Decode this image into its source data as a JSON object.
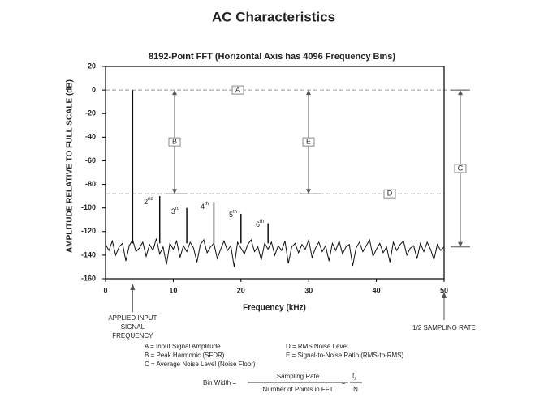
{
  "title": "AC Characteristics",
  "chart_data": {
    "type": "line",
    "title": "8192-Point FFT (Horizontal Axis has 4096 Frequency Bins)",
    "x_label": "Frequency (kHz)",
    "y_label": "AMPLITUDE RELATIVE TO FULL SCALE (dB)",
    "xlim": [
      0,
      50
    ],
    "xticks": [
      0,
      10,
      20,
      30,
      40,
      50
    ],
    "ylim": [
      -160,
      20
    ],
    "yticks": [
      20,
      0,
      -20,
      -40,
      -60,
      -80,
      -100,
      -120,
      -140,
      -160
    ],
    "x": [
      0,
      0.5,
      1,
      1.5,
      2,
      2.5,
      3,
      3.5,
      4,
      4.5,
      5,
      5.5,
      6,
      6.5,
      7,
      7.5,
      8,
      8.5,
      9,
      9.5,
      10,
      10.5,
      11,
      11.5,
      12,
      12.5,
      13,
      13.5,
      14,
      14.5,
      15,
      15.5,
      16,
      16.5,
      17,
      17.5,
      18,
      18.5,
      19,
      19.5,
      20,
      20.5,
      21,
      21.5,
      22,
      22.5,
      23,
      23.5,
      24,
      24.5,
      25,
      25.5,
      26,
      26.5,
      27,
      27.5,
      28,
      28.5,
      29,
      29.5,
      30,
      30.5,
      31,
      31.5,
      32,
      32.5,
      33,
      33.5,
      34,
      34.5,
      35,
      35.5,
      36,
      36.5,
      37,
      37.5,
      38,
      38.5,
      39,
      39.5,
      40,
      40.5,
      41,
      41.5,
      42,
      42.5,
      43,
      43.5,
      44,
      44.5,
      45,
      45.5,
      46,
      46.5,
      47,
      47.5,
      48,
      48.5,
      49,
      49.5,
      50
    ],
    "series": [
      {
        "color": "#111111",
        "values": [
          -131,
          -136,
          -128,
          -140,
          -133,
          -130,
          -145,
          -132,
          -127,
          -137,
          -134,
          -129,
          -141,
          -131,
          -136,
          -126,
          -139,
          -133,
          -148,
          -130,
          -135,
          -128,
          -142,
          -132,
          -137,
          -129,
          -134,
          -146,
          -131,
          -127,
          -138,
          -133,
          -130,
          -143,
          -135,
          -128,
          -136,
          -132,
          -150,
          -129,
          -134,
          -139,
          -131,
          -127,
          -137,
          -133,
          -144,
          -130,
          -135,
          -129,
          -140,
          -132,
          -136,
          -128,
          -147,
          -133,
          -130,
          -138,
          -131,
          -135,
          -127,
          -142,
          -134,
          -129,
          -137,
          -132,
          -145,
          -130,
          -136,
          -128,
          -139,
          -133,
          -131,
          -149,
          -134,
          -129,
          -137,
          -132,
          -127,
          -141,
          -135,
          -130,
          -138,
          -133,
          -146,
          -129,
          -136,
          -131,
          -128,
          -140,
          -134,
          -132,
          -143,
          -130,
          -137,
          -129,
          -135,
          -144,
          -131,
          -136,
          -133
        ]
      }
    ],
    "tones": {
      "color": "#111111",
      "x": [
        4,
        8,
        12,
        16,
        20,
        24
      ],
      "values": [
        0,
        -90,
        -100,
        -95,
        -105,
        -113
      ]
    },
    "harmonic_labels": [
      {
        "number": "2",
        "suffix": "nd"
      },
      {
        "number": "3",
        "suffix": "rd"
      },
      {
        "number": "4",
        "suffix": "th"
      },
      {
        "number": "5",
        "suffix": "th"
      },
      {
        "number": "6",
        "suffix": "th"
      }
    ],
    "reference_lines": [
      {
        "label": "A",
        "value": 0
      },
      {
        "label": "D",
        "value": -88
      }
    ],
    "spans": [
      {
        "label": "B",
        "from": 0,
        "to": -88
      },
      {
        "label": "E",
        "from": 0,
        "to": -88
      },
      {
        "label": "C",
        "from": 0,
        "to": -133
      }
    ],
    "callouts": {
      "input": [
        "APPLIED INPUT",
        "SIGNAL",
        "FREQUENCY"
      ],
      "nyquist": "1/2 SAMPLING RATE"
    }
  },
  "notes": {
    "legend": [
      "A = Input Signal Amplitude",
      "B = Peak Harmonic (SFDR)",
      "C = Average Noise Level (Noise Floor)",
      "D = RMS Noise Level",
      "E = Signal-to-Noise Ratio (RMS-to-RMS)"
    ],
    "formula": {
      "lhs": "Bin Width =",
      "numerator": "Sampling Rate",
      "denominator": "Number of Points in FFT",
      "equals": "=",
      "f": "f",
      "sub": "s",
      "n": "N"
    }
  }
}
